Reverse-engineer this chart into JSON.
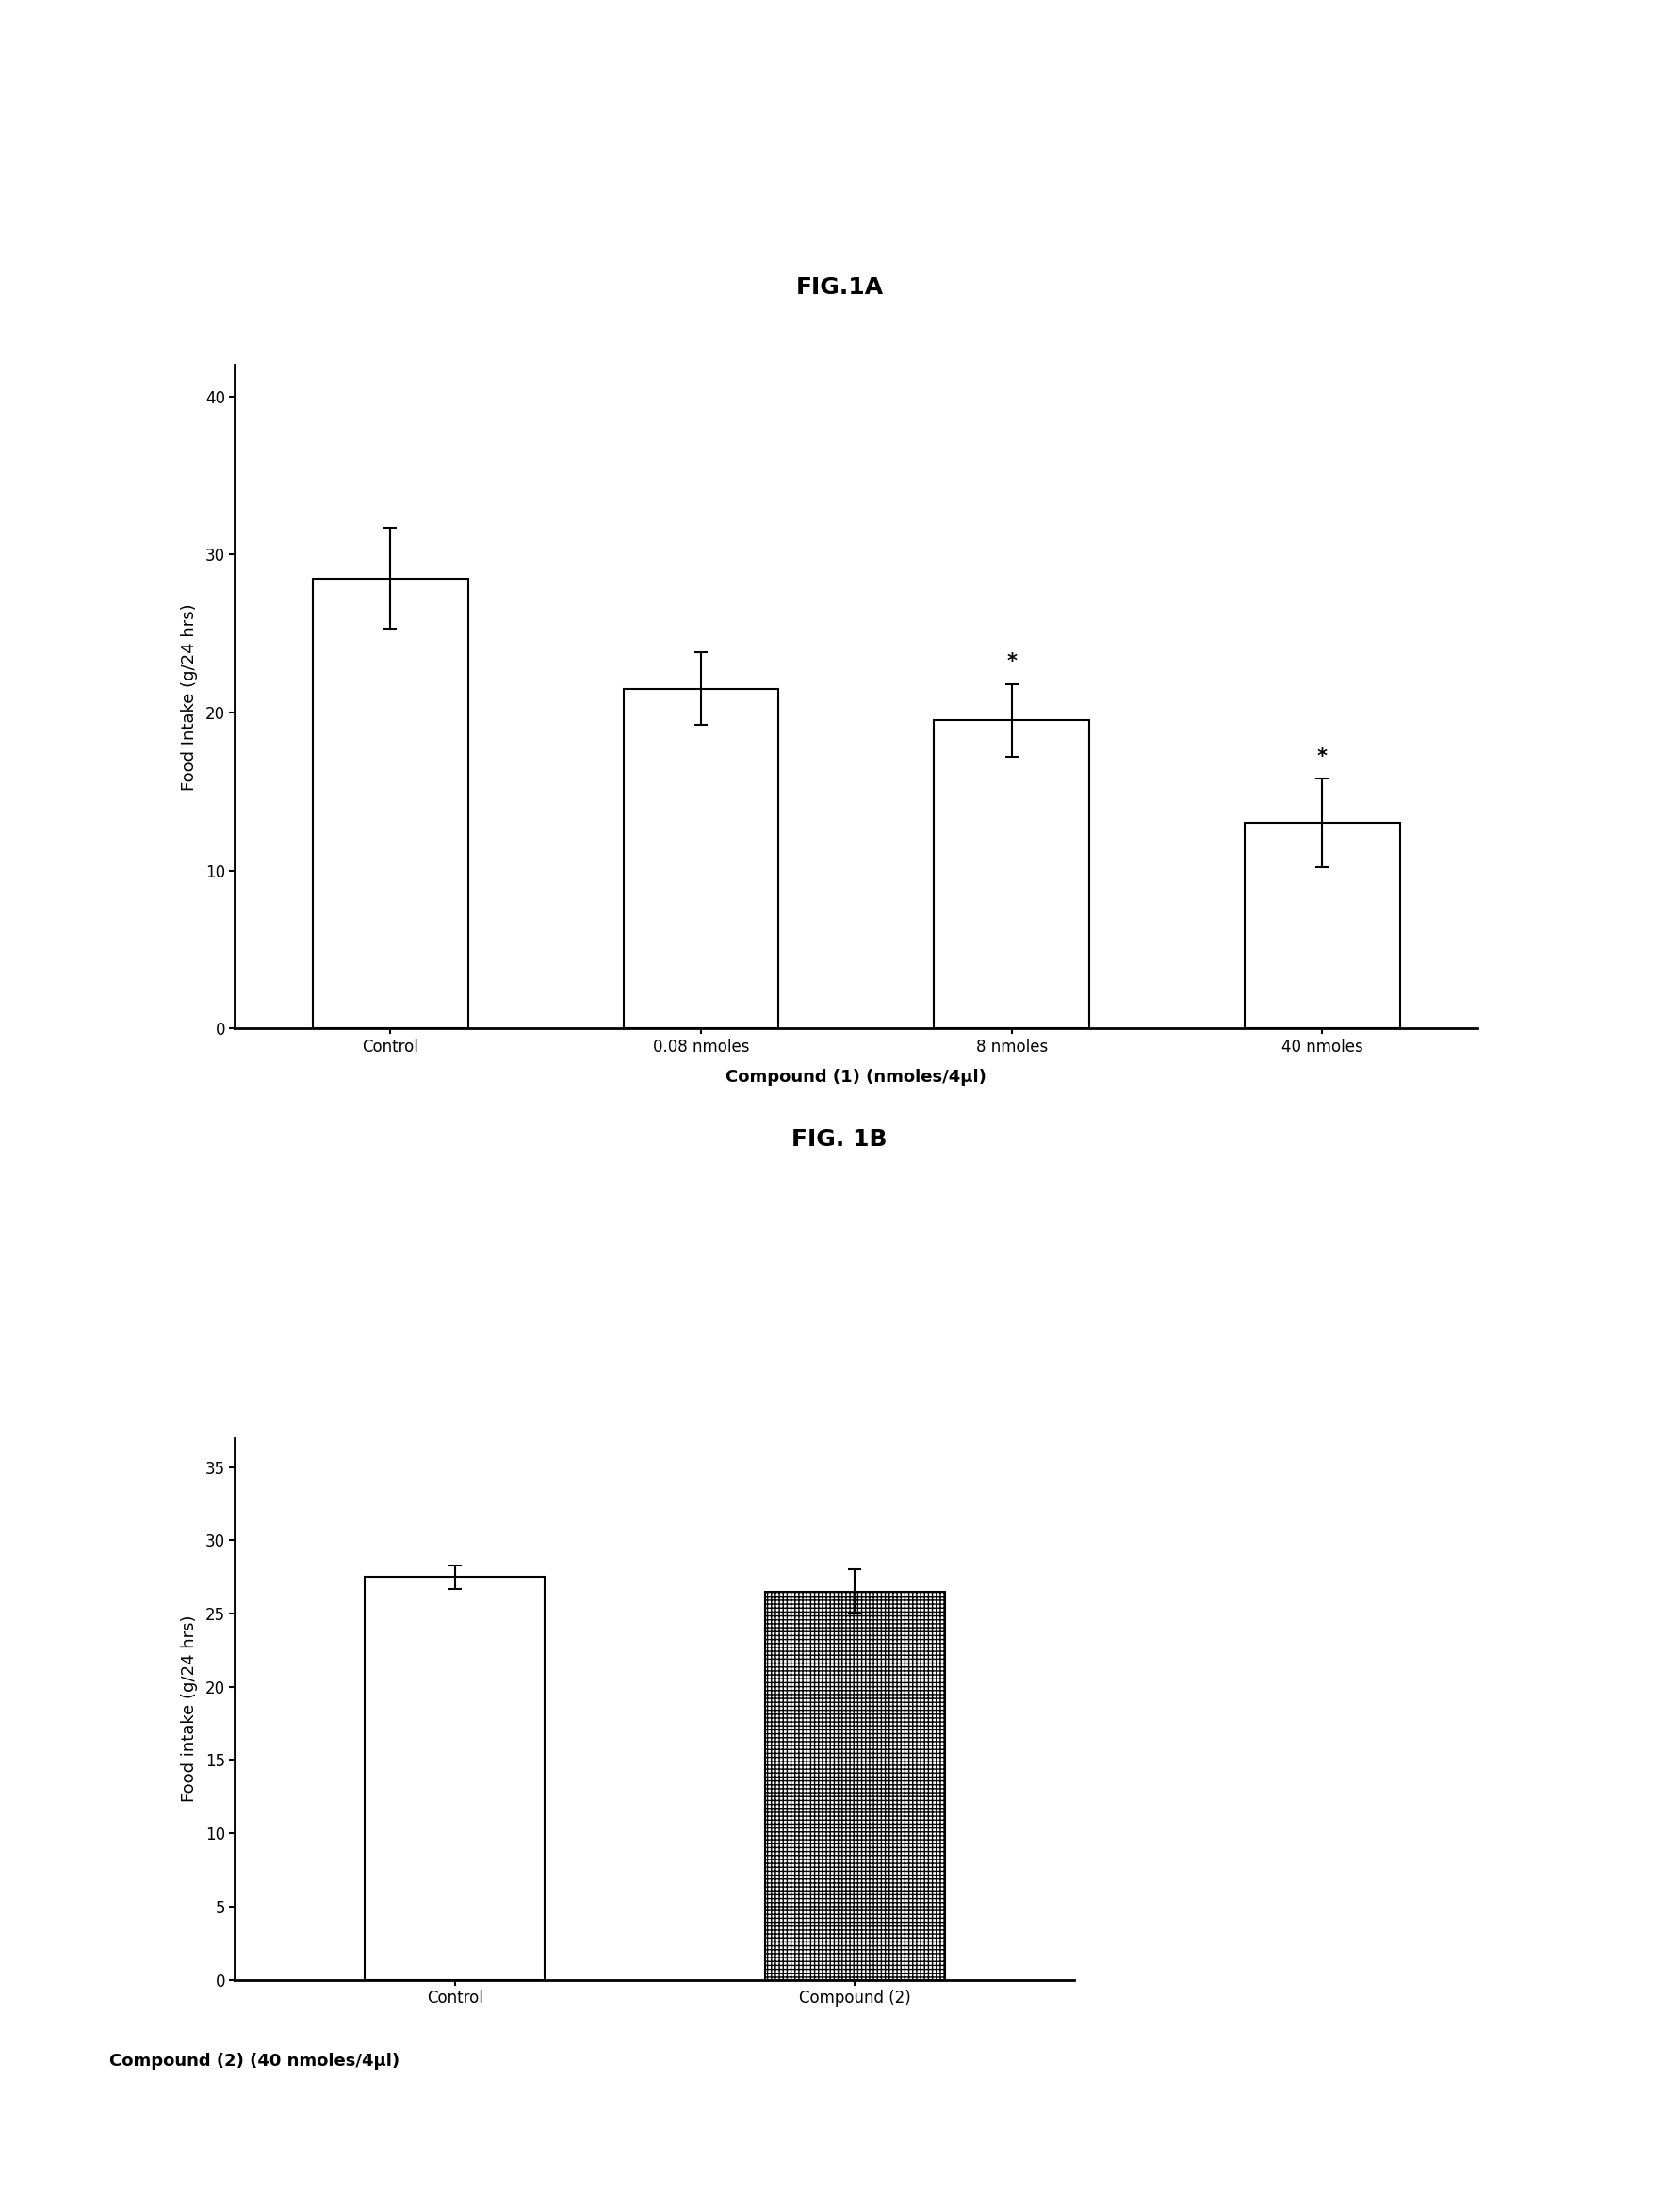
{
  "fig1a": {
    "title": "FIG.1A",
    "categories": [
      "Control",
      "0.08 nmoles",
      "8 nmoles",
      "40 nmoles"
    ],
    "values": [
      28.5,
      21.5,
      19.5,
      13.0
    ],
    "errors": [
      3.2,
      2.3,
      2.3,
      2.8
    ],
    "ylabel": "Food Intake (g/24 hrs)",
    "xlabel": "Compound (1) (nmoles/4μl)",
    "ylim": [
      0,
      42
    ],
    "yticks": [
      0,
      10,
      20,
      30,
      40
    ],
    "sig_markers": [
      "",
      "",
      "*",
      "*"
    ],
    "bar_color": "white",
    "bar_edgecolor": "black"
  },
  "fig1b": {
    "title": "FIG. 1B",
    "categories": [
      "Control",
      "Compound (2)"
    ],
    "values": [
      27.5,
      26.5
    ],
    "errors": [
      0.8,
      1.5
    ],
    "ylabel": "Food intake (g/24 hrs)",
    "xlabel": "Compound (2) (40 nmoles/4μl)",
    "ylim": [
      0,
      37
    ],
    "yticks": [
      0,
      5,
      10,
      15,
      20,
      25,
      30,
      35
    ],
    "bar_colors": [
      "white",
      "hatched"
    ],
    "bar_edgecolor": "black",
    "hatch_pattern": "++++"
  },
  "background_color": "#ffffff",
  "title_fontsize": 18,
  "label_fontsize": 13,
  "tick_fontsize": 12,
  "sig_fontsize": 15,
  "xlabel_fontsize": 13
}
